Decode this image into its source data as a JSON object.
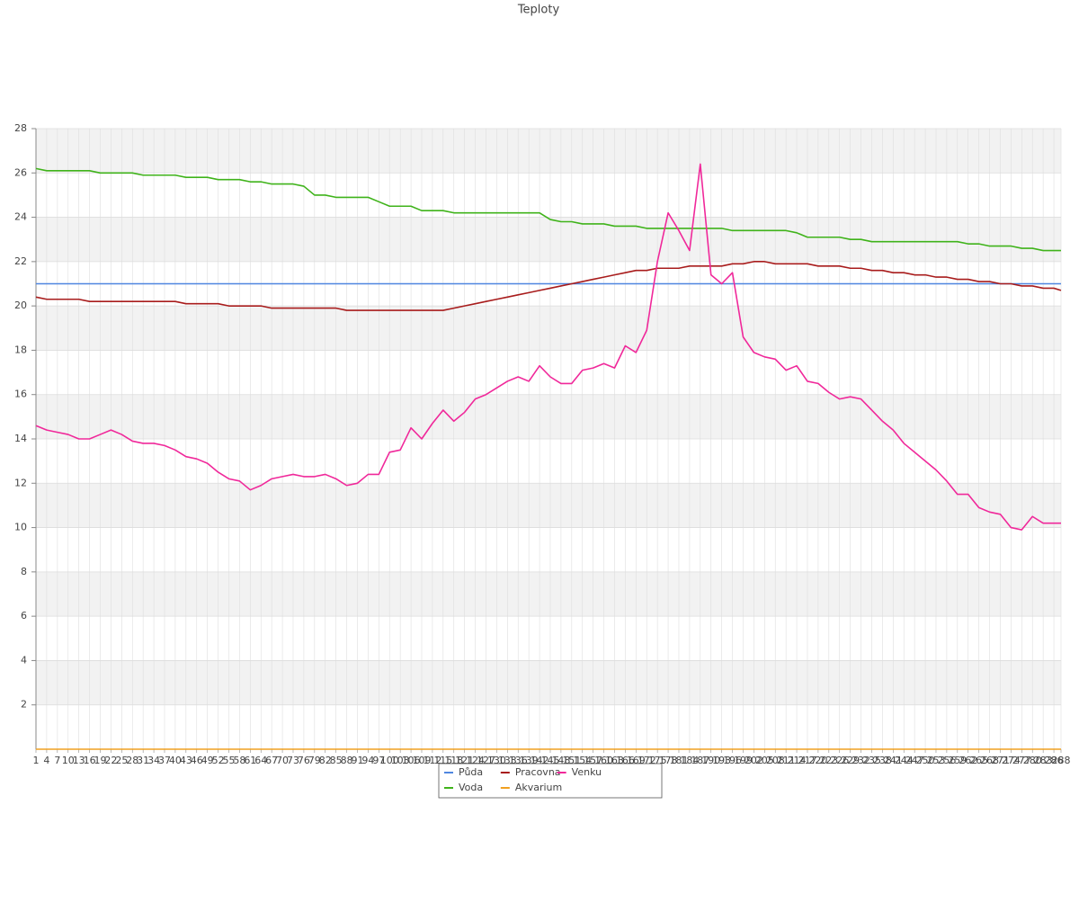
{
  "chart_data": {
    "type": "line",
    "title": "Teploty",
    "x": [
      1,
      4,
      7,
      10,
      13,
      16,
      19,
      22,
      25,
      28,
      31,
      34,
      37,
      40,
      43,
      46,
      49,
      52,
      55,
      58,
      61,
      64,
      67,
      70,
      73,
      76,
      79,
      82,
      85,
      88,
      91,
      94,
      97,
      100,
      103,
      106,
      109,
      112,
      115,
      118,
      121,
      124,
      127,
      130,
      133,
      136,
      139,
      142,
      145,
      148,
      151,
      154,
      157,
      160,
      163,
      166,
      169,
      172,
      175,
      178,
      181,
      184,
      187,
      190,
      193,
      196,
      199,
      202,
      205,
      208,
      211,
      214,
      217,
      220,
      223,
      226,
      229,
      232,
      235,
      238,
      241,
      244,
      247,
      250,
      253,
      256,
      259,
      262,
      265,
      268,
      271,
      274,
      277,
      280,
      283,
      286,
      288
    ],
    "xlim": [
      1,
      288
    ],
    "ylim": [
      0,
      28
    ],
    "yticks": [
      2,
      4,
      6,
      8,
      10,
      12,
      14,
      16,
      18,
      20,
      22,
      24,
      26,
      28
    ],
    "grid": true,
    "legend": "bottom",
    "series": [
      {
        "name": "Půda",
        "color": "#4f86e0",
        "values": [
          21,
          21,
          21,
          21,
          21,
          21,
          21,
          21,
          21,
          21,
          21,
          21,
          21,
          21,
          21,
          21,
          21,
          21,
          21,
          21,
          21,
          21,
          21,
          21,
          21,
          21,
          21,
          21,
          21,
          21,
          21,
          21,
          21,
          21,
          21,
          21,
          21,
          21,
          21,
          21,
          21,
          21,
          21,
          21,
          21,
          21,
          21,
          21,
          21,
          21,
          21,
          21,
          21,
          21,
          21,
          21,
          21,
          21,
          21,
          21,
          21,
          21,
          21,
          21,
          21,
          21,
          21,
          21,
          21,
          21,
          21,
          21,
          21,
          21,
          21,
          21,
          21,
          21,
          21,
          21,
          21,
          21,
          21,
          21,
          21,
          21,
          21,
          21,
          21,
          21,
          21,
          21,
          21,
          21,
          21,
          21,
          21
        ]
      },
      {
        "name": "Voda",
        "color": "#3fb31a",
        "values": [
          26.2,
          26.1,
          26.1,
          26.1,
          26.1,
          26.1,
          26.0,
          26.0,
          26.0,
          26.0,
          25.9,
          25.9,
          25.9,
          25.9,
          25.8,
          25.8,
          25.8,
          25.7,
          25.7,
          25.7,
          25.6,
          25.6,
          25.5,
          25.5,
          25.5,
          25.4,
          25.0,
          25.0,
          24.9,
          24.9,
          24.9,
          24.9,
          24.7,
          24.5,
          24.5,
          24.5,
          24.3,
          24.3,
          24.3,
          24.2,
          24.2,
          24.2,
          24.2,
          24.2,
          24.2,
          24.2,
          24.2,
          24.2,
          23.9,
          23.8,
          23.8,
          23.7,
          23.7,
          23.7,
          23.6,
          23.6,
          23.6,
          23.5,
          23.5,
          23.5,
          23.5,
          23.5,
          23.5,
          23.5,
          23.5,
          23.4,
          23.4,
          23.4,
          23.4,
          23.4,
          23.4,
          23.3,
          23.1,
          23.1,
          23.1,
          23.1,
          23.0,
          23.0,
          22.9,
          22.9,
          22.9,
          22.9,
          22.9,
          22.9,
          22.9,
          22.9,
          22.9,
          22.8,
          22.8,
          22.7,
          22.7,
          22.7,
          22.6,
          22.6,
          22.5,
          22.5,
          22.5
        ]
      },
      {
        "name": "Pracovna",
        "color": "#a81c1c",
        "values": [
          20.4,
          20.3,
          20.3,
          20.3,
          20.3,
          20.2,
          20.2,
          20.2,
          20.2,
          20.2,
          20.2,
          20.2,
          20.2,
          20.2,
          20.1,
          20.1,
          20.1,
          20.1,
          20.0,
          20.0,
          20.0,
          20.0,
          19.9,
          19.9,
          19.9,
          19.9,
          19.9,
          19.9,
          19.9,
          19.8,
          19.8,
          19.8,
          19.8,
          19.8,
          19.8,
          19.8,
          19.8,
          19.8,
          19.8,
          19.9,
          20.0,
          20.1,
          20.2,
          20.3,
          20.4,
          20.5,
          20.6,
          20.7,
          20.8,
          20.9,
          21.0,
          21.1,
          21.2,
          21.3,
          21.4,
          21.5,
          21.6,
          21.6,
          21.7,
          21.7,
          21.7,
          21.8,
          21.8,
          21.8,
          21.8,
          21.9,
          21.9,
          22.0,
          22.0,
          21.9,
          21.9,
          21.9,
          21.9,
          21.8,
          21.8,
          21.8,
          21.7,
          21.7,
          21.6,
          21.6,
          21.5,
          21.5,
          21.4,
          21.4,
          21.3,
          21.3,
          21.2,
          21.2,
          21.1,
          21.1,
          21.0,
          21.0,
          20.9,
          20.9,
          20.8,
          20.8,
          20.7
        ]
      },
      {
        "name": "Akvarium",
        "color": "#f0a020",
        "values": [
          0,
          0,
          0,
          0,
          0,
          0,
          0,
          0,
          0,
          0,
          0,
          0,
          0,
          0,
          0,
          0,
          0,
          0,
          0,
          0,
          0,
          0,
          0,
          0,
          0,
          0,
          0,
          0,
          0,
          0,
          0,
          0,
          0,
          0,
          0,
          0,
          0,
          0,
          0,
          0,
          0,
          0,
          0,
          0,
          0,
          0,
          0,
          0,
          0,
          0,
          0,
          0,
          0,
          0,
          0,
          0,
          0,
          0,
          0,
          0,
          0,
          0,
          0,
          0,
          0,
          0,
          0,
          0,
          0,
          0,
          0,
          0,
          0,
          0,
          0,
          0,
          0,
          0,
          0,
          0,
          0,
          0,
          0,
          0,
          0,
          0,
          0,
          0,
          0,
          0,
          0,
          0,
          0,
          0,
          0,
          0,
          0
        ]
      },
      {
        "name": "Venku",
        "color": "#f0289a",
        "values": [
          14.6,
          14.4,
          14.3,
          14.2,
          14.0,
          14.0,
          14.2,
          14.4,
          14.2,
          13.9,
          13.8,
          13.8,
          13.7,
          13.5,
          13.2,
          13.1,
          12.9,
          12.5,
          12.2,
          12.1,
          11.7,
          11.9,
          12.2,
          12.3,
          12.4,
          12.3,
          12.3,
          12.4,
          12.2,
          11.9,
          12.0,
          12.4,
          12.4,
          13.4,
          13.5,
          14.5,
          14.0,
          14.7,
          15.3,
          14.8,
          15.2,
          15.8,
          16.0,
          16.3,
          16.6,
          16.8,
          16.6,
          17.3,
          16.8,
          16.5,
          16.5,
          17.1,
          17.2,
          17.4,
          17.2,
          18.2,
          17.9,
          18.9,
          22.0,
          24.2,
          23.4,
          22.5,
          26.4,
          21.4,
          21.0,
          21.5,
          18.6,
          17.9,
          17.7,
          17.6,
          17.1,
          17.3,
          16.6,
          16.5,
          16.1,
          15.8,
          15.9,
          15.8,
          15.3,
          14.8,
          14.4,
          13.8,
          13.4,
          13.0,
          12.6,
          12.1,
          11.5,
          11.5,
          10.9,
          10.7,
          10.6,
          10.0,
          9.9,
          10.5,
          10.2,
          10.2,
          10.2
        ]
      }
    ]
  }
}
